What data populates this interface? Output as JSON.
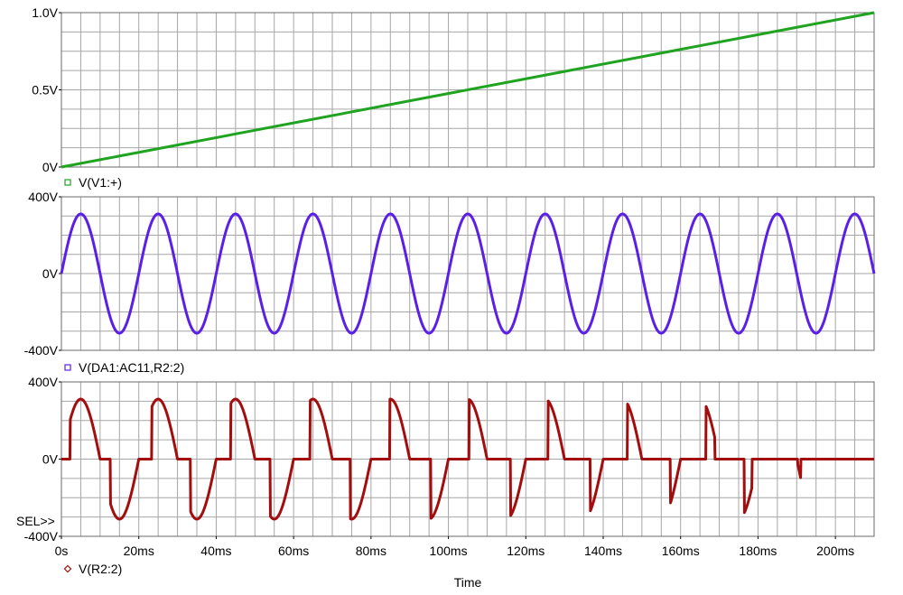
{
  "chart_data": [
    {
      "type": "line",
      "panel": 1,
      "ylabels": [
        "1.0V",
        "0.5V",
        "0V"
      ],
      "yticks": [
        1.0,
        0.5,
        0
      ],
      "ylim": [
        0,
        1.0
      ],
      "xlim": [
        0,
        210
      ],
      "series": [
        {
          "name": "V(V1:+)",
          "color": "#1fa320",
          "marker": "square",
          "x": [
            0,
            210
          ],
          "y": [
            0,
            1.0
          ]
        }
      ]
    },
    {
      "type": "line",
      "panel": 2,
      "ylabels": [
        "400V",
        "0V",
        "-400V"
      ],
      "yticks": [
        400,
        0,
        -400
      ],
      "ylim": [
        -400,
        400
      ],
      "xlim": [
        0,
        210
      ],
      "series": [
        {
          "name": "V(DA1:AC11,R2:2)",
          "color": "#5b1fe8",
          "marker": "square",
          "function": "sine",
          "amplitude": 311,
          "frequency_hz": 50,
          "x_range": [
            0,
            210
          ]
        }
      ]
    },
    {
      "type": "line",
      "panel": 3,
      "ylabels": [
        "400V",
        "0V",
        "-400V"
      ],
      "yticks": [
        400,
        0,
        -400
      ],
      "ylim": [
        -400,
        400
      ],
      "xlim": [
        0,
        210
      ],
      "selector": "SEL>>",
      "series": [
        {
          "name": "V(R2:2)",
          "color": "#a30d0d",
          "marker": "diamond",
          "function": "chopped-sine",
          "amplitude": 311,
          "frequency_hz": 50,
          "pos_on_ms": [
            12.6,
            33.4,
            54.0,
            74.7,
            95.4,
            116.0,
            136.6,
            157.3,
            176.4
          ],
          "pos_off_ms": [
            20.0,
            40.0,
            60.0,
            80.0,
            100.0,
            120.0,
            140.0,
            160.0,
            178.4
          ],
          "neg_on_ms": [
            2.3,
            23.4,
            43.8,
            64.3,
            84.8,
            105.3,
            125.7,
            146.2,
            166.5,
            190.2
          ],
          "neg_off_ms": [
            10.0,
            30.0,
            50.0,
            70.0,
            90.0,
            110.0,
            130.0,
            150.0,
            168.8,
            191.0
          ]
        }
      ]
    }
  ],
  "xaxis": {
    "ticks": [
      0,
      20,
      40,
      60,
      80,
      100,
      120,
      140,
      160,
      180,
      200
    ],
    "labels": [
      "0s",
      "20ms",
      "40ms",
      "60ms",
      "80ms",
      "100ms",
      "120ms",
      "140ms",
      "160ms",
      "180ms",
      "200ms"
    ],
    "title": "Time"
  },
  "grid": true,
  "colors": {
    "grid": "#a6a6a6",
    "border": "#6a6a6a",
    "background": "#ffffff"
  }
}
